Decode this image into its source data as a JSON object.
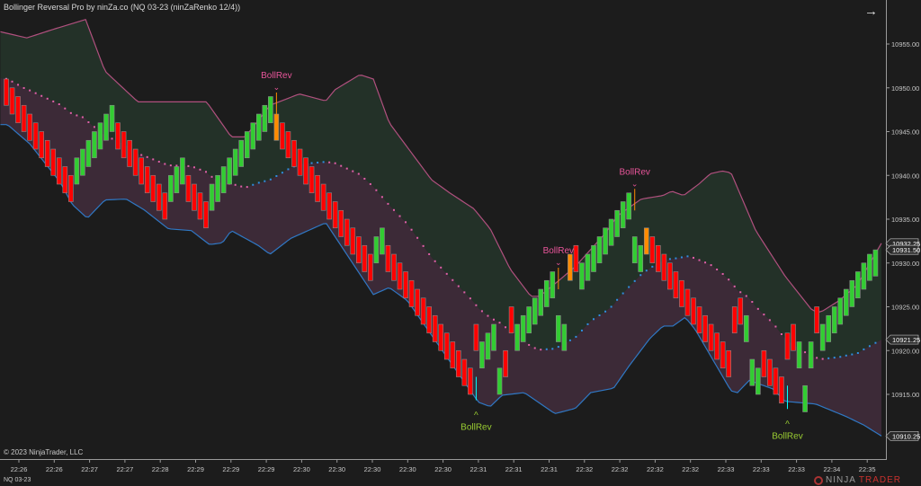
{
  "window": {
    "title": "Bollinger Reversal Pro by ninZa.co (NQ 03-23 (ninZaRenko 12/4))",
    "copyright": "© 2023 NinjaTrader, LLC",
    "instrument": "NQ 03-23",
    "logo": {
      "part1": "NINJA",
      "part2": "TRADER",
      "mark": "®"
    },
    "nav_icon": "arrow-right-icon"
  },
  "colors": {
    "background": "#1c1c1c",
    "up_candle": "#32cd32",
    "down_candle": "#ff0000",
    "bull_reversal_candle": "#00ffff",
    "bear_reversal_candle": "#ff8c00",
    "upper_band": "#b0507e",
    "lower_band": "#2f78c4",
    "upper_fill": "#233128",
    "lower_fill": "#3c2a37",
    "mid_rising": "#2f8fe0",
    "mid_falling": "#e060a8",
    "signal_down_text": "#e8559a",
    "signal_up_text": "#9acd32"
  },
  "chart_data": {
    "type": "candlestick",
    "ylim": [
      10908,
      10960
    ],
    "y_ticks": [
      "10955.00",
      "10950.00",
      "10945.00",
      "10940.00",
      "10935.00",
      "10930.00",
      "10925.00",
      "10920.00",
      "10915.00"
    ],
    "price_markers": [
      {
        "label": "10932.25",
        "value": 10932.25,
        "kind": "upper_band"
      },
      {
        "label": "10931.50",
        "value": 10931.5,
        "kind": "last_price"
      },
      {
        "label": "10921.25",
        "value": 10921.25,
        "kind": "mid_band"
      },
      {
        "label": "10910.25",
        "value": 10910.25,
        "kind": "lower_band"
      }
    ],
    "x_ticks": [
      "22:26",
      "22:26",
      "22:27",
      "22:27",
      "22:28",
      "22:29",
      "22:29",
      "22:29",
      "22:30",
      "22:30",
      "22:30",
      "22:30",
      "22:30",
      "22:31",
      "22:31",
      "22:31",
      "22:32",
      "22:32",
      "22:32",
      "22:32",
      "22:33",
      "22:33",
      "22:33",
      "22:34",
      "22:35"
    ],
    "brick_size": 3,
    "candle_types": "ddddddddddddu uuuuuudddddddddu uudddd uuuuuuuuuuuoddddddddddddddddu udddddddddddddddduuu uddu uuuuuuuuoduuuuuuuuuuuoddddddddddddddddu uudddddduu udu uuuuuuuuuuu",
    "closes": [
      10948,
      10947,
      10946,
      10945,
      10944,
      10943,
      10942,
      10941,
      10940,
      10939,
      10938,
      10937,
      10942,
      10943,
      10944,
      10945,
      10946,
      10947,
      10948,
      10943,
      10942,
      10941,
      10940,
      10939,
      10938,
      10937,
      10936,
      10935,
      10940,
      10941,
      10942,
      10937,
      10936,
      10935,
      10934,
      10939,
      10940,
      10941,
      10942,
      10943,
      10944,
      10945,
      10946,
      10947,
      10948,
      10949,
      10944,
      10943,
      10942,
      10941,
      10940,
      10939,
      10938,
      10937,
      10936,
      10935,
      10934,
      10933,
      10932,
      10931,
      10930,
      10929,
      10928,
      10933,
      10934,
      10929,
      10928,
      10927,
      10926,
      10925,
      10924,
      10923,
      10922,
      10921,
      10920,
      10919,
      10918,
      10917,
      10916,
      10915,
      10920,
      10921,
      10922,
      10923,
      10918,
      10917,
      10922,
      10923,
      10924,
      10925,
      10926,
      10927,
      10928,
      10929,
      10924,
      10923,
      10928,
      10929,
      10930,
      10931,
      10932,
      10933,
      10934,
      10935,
      10936,
      10937,
      10938,
      10933,
      10932,
      10931,
      10930,
      10929,
      10928,
      10927,
      10926,
      10925,
      10924,
      10923,
      10922,
      10921,
      10920,
      10919,
      10918,
      10917,
      10922,
      10923,
      10924,
      10919,
      10918,
      10917,
      10916,
      10915,
      10914,
      10919,
      10920,
      10921,
      10916,
      10921,
      10922,
      10923,
      10924,
      10925,
      10926,
      10927,
      10928,
      10929,
      10930,
      10931,
      10931.5
    ],
    "upper_band": [
      [
        -1,
        10956.4
      ],
      [
        3.5,
        10955.7
      ],
      [
        8.1,
        10956.7
      ],
      [
        13.5,
        10957.8
      ],
      [
        16.8,
        10951.9
      ],
      [
        22.4,
        10948.4
      ],
      [
        27.6,
        10948.4
      ],
      [
        34.1,
        10948.4
      ],
      [
        38.3,
        10944.4
      ],
      [
        40.7,
        10944.4
      ],
      [
        44.9,
        10948.0
      ],
      [
        49.9,
        10949.3
      ],
      [
        54.4,
        10948.5
      ],
      [
        56,
        10949.8
      ],
      [
        60.2,
        10951.5
      ],
      [
        62.5,
        10951.0
      ],
      [
        65.2,
        10946.0
      ],
      [
        72.4,
        10939.5
      ],
      [
        75.5,
        10938.0
      ],
      [
        79.6,
        10936.2
      ],
      [
        82.4,
        10933.9
      ],
      [
        85.8,
        10929.3
      ],
      [
        89.3,
        10926.2
      ],
      [
        90.8,
        10926.2
      ],
      [
        93.9,
        10927.9
      ],
      [
        96.9,
        10929.6
      ],
      [
        102,
        10933.4
      ],
      [
        104.1,
        10935.4
      ],
      [
        108.1,
        10937.3
      ],
      [
        111.8,
        10937.7
      ],
      [
        113.3,
        10938.2
      ],
      [
        115.3,
        10937.7
      ],
      [
        117.9,
        10939.0
      ],
      [
        119.9,
        10940.2
      ],
      [
        121.9,
        10940.5
      ],
      [
        123.4,
        10940.3
      ],
      [
        127.6,
        10933.7
      ],
      [
        132.6,
        10928.5
      ],
      [
        137.2,
        10924.6
      ],
      [
        138.7,
        10924.4
      ],
      [
        141.8,
        10925.7
      ],
      [
        144.9,
        10927.5
      ],
      [
        149,
        10932.25
      ]
    ],
    "lower_band": [
      [
        -1,
        10945.8
      ],
      [
        0.2,
        10945.8
      ],
      [
        4,
        10943.6
      ],
      [
        9.2,
        10939.2
      ],
      [
        11.2,
        10936.7
      ],
      [
        13.8,
        10935.1
      ],
      [
        16.8,
        10937.2
      ],
      [
        20.4,
        10937.3
      ],
      [
        23.4,
        10936.1
      ],
      [
        27.6,
        10933.9
      ],
      [
        31.5,
        10933.7
      ],
      [
        34.6,
        10932.1
      ],
      [
        36.8,
        10932.3
      ],
      [
        38.3,
        10933.7
      ],
      [
        42.9,
        10932.0
      ],
      [
        44.9,
        10931.0
      ],
      [
        48.4,
        10932.8
      ],
      [
        54.4,
        10934.6
      ],
      [
        62.5,
        10926.4
      ],
      [
        65.2,
        10927.2
      ],
      [
        68.3,
        10925.7
      ],
      [
        80.4,
        10914.1
      ],
      [
        82.4,
        10913.6
      ],
      [
        84.4,
        10914.9
      ],
      [
        88.2,
        10915.2
      ],
      [
        93.4,
        10912.8
      ],
      [
        96.9,
        10913.4
      ],
      [
        99.5,
        10915.2
      ],
      [
        103.4,
        10915.7
      ],
      [
        106.1,
        10918.3
      ],
      [
        109.6,
        10921.4
      ],
      [
        111.8,
        10922.8
      ],
      [
        113.5,
        10922.8
      ],
      [
        115.6,
        10923.8
      ],
      [
        117.3,
        10922.4
      ],
      [
        123.4,
        10915.4
      ],
      [
        124.5,
        10915.2
      ],
      [
        126.5,
        10916.6
      ],
      [
        130.6,
        10915.6
      ],
      [
        132.6,
        10914.2
      ],
      [
        137.8,
        10913.9
      ],
      [
        142.9,
        10912.5
      ],
      [
        146,
        10911.5
      ],
      [
        149,
        10910.25
      ]
    ],
    "signals": [
      {
        "bar": 46,
        "direction": "down",
        "label": "BollRev"
      },
      {
        "bar": 80,
        "direction": "up",
        "label": "BollRev"
      },
      {
        "bar": 94,
        "direction": "down",
        "label": "BollRev"
      },
      {
        "bar": 107,
        "direction": "down",
        "label": "BollRev"
      },
      {
        "bar": 133,
        "direction": "up",
        "label": "BollRev"
      }
    ]
  }
}
